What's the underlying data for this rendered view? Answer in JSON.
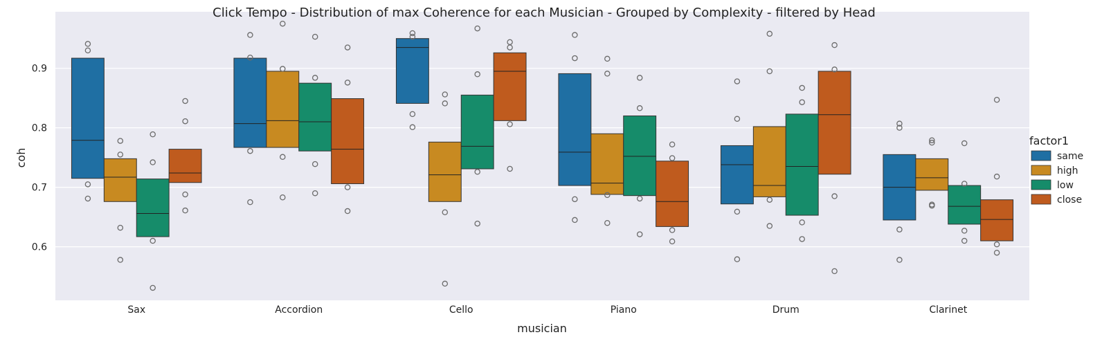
{
  "chart_data": {
    "type": "boxen",
    "title": "Click Tempo - Distribution of max Coherence for each Musician - Grouped by Complexity - filtered by Head",
    "xlabel": "musician",
    "ylabel": "coh",
    "ylim": [
      0.51,
      0.995
    ],
    "yticks": [
      0.6,
      0.7,
      0.8,
      0.9
    ],
    "ytick_labels": [
      "0.6",
      "0.7",
      "0.8",
      "0.9"
    ],
    "grid": true,
    "legend": {
      "title": "factor1",
      "placement": "right"
    },
    "categories": [
      "Sax",
      "Accordion",
      "Cello",
      "Piano",
      "Drum",
      "Clarinet"
    ],
    "series": [
      {
        "name": "same",
        "color": "#1f6fa3",
        "boxes": [
          {
            "q1": 0.715,
            "median": 0.779,
            "q3": 0.917,
            "outliers": [
              0.941,
              0.93,
              0.705,
              0.681
            ]
          },
          {
            "q1": 0.767,
            "median": 0.807,
            "q3": 0.917,
            "outliers": [
              0.956,
              0.918,
              0.761,
              0.675
            ]
          },
          {
            "q1": 0.841,
            "median": 0.935,
            "q3": 0.95,
            "outliers": [
              0.959,
              0.953,
              0.823,
              0.801
            ]
          },
          {
            "q1": 0.703,
            "median": 0.759,
            "q3": 0.891,
            "outliers": [
              0.956,
              0.917,
              0.68,
              0.645
            ]
          },
          {
            "q1": 0.672,
            "median": 0.738,
            "q3": 0.77,
            "outliers": [
              0.878,
              0.815,
              0.659,
              0.579
            ]
          },
          {
            "q1": 0.645,
            "median": 0.7,
            "q3": 0.755,
            "outliers": [
              0.807,
              0.8,
              0.629,
              0.578
            ]
          }
        ]
      },
      {
        "name": "high",
        "color": "#c88a21",
        "boxes": [
          {
            "q1": 0.676,
            "median": 0.717,
            "q3": 0.748,
            "outliers": [
              0.778,
              0.755,
              0.632,
              0.578
            ]
          },
          {
            "q1": 0.767,
            "median": 0.812,
            "q3": 0.895,
            "outliers": [
              0.975,
              0.899,
              0.751,
              0.683
            ]
          },
          {
            "q1": 0.676,
            "median": 0.721,
            "q3": 0.776,
            "outliers": [
              0.856,
              0.841,
              0.658,
              0.538
            ]
          },
          {
            "q1": 0.688,
            "median": 0.707,
            "q3": 0.79,
            "outliers": [
              0.916,
              0.891,
              0.687,
              0.64
            ]
          },
          {
            "q1": 0.684,
            "median": 0.703,
            "q3": 0.802,
            "outliers": [
              0.958,
              0.895,
              0.679,
              0.635
            ]
          },
          {
            "q1": 0.695,
            "median": 0.716,
            "q3": 0.748,
            "outliers": [
              0.779,
              0.775,
              0.671,
              0.669
            ]
          }
        ]
      },
      {
        "name": "low",
        "color": "#168c6a",
        "boxes": [
          {
            "q1": 0.617,
            "median": 0.656,
            "q3": 0.714,
            "outliers": [
              0.789,
              0.742,
              0.61,
              0.531
            ]
          },
          {
            "q1": 0.761,
            "median": 0.81,
            "q3": 0.875,
            "outliers": [
              0.953,
              0.884,
              0.739,
              0.69
            ]
          },
          {
            "q1": 0.731,
            "median": 0.769,
            "q3": 0.855,
            "outliers": [
              0.967,
              0.89,
              0.726,
              0.639
            ]
          },
          {
            "q1": 0.686,
            "median": 0.752,
            "q3": 0.82,
            "outliers": [
              0.884,
              0.833,
              0.681,
              0.621
            ]
          },
          {
            "q1": 0.653,
            "median": 0.735,
            "q3": 0.823,
            "outliers": [
              0.867,
              0.843,
              0.641,
              0.613
            ]
          },
          {
            "q1": 0.638,
            "median": 0.668,
            "q3": 0.703,
            "outliers": [
              0.774,
              0.706,
              0.627,
              0.61
            ]
          }
        ]
      },
      {
        "name": "close",
        "color": "#bf5b1e",
        "boxes": [
          {
            "q1": 0.708,
            "median": 0.724,
            "q3": 0.764,
            "outliers": [
              0.845,
              0.811,
              0.688,
              0.661
            ]
          },
          {
            "q1": 0.706,
            "median": 0.764,
            "q3": 0.849,
            "outliers": [
              0.935,
              0.876,
              0.7,
              0.66
            ]
          },
          {
            "q1": 0.812,
            "median": 0.895,
            "q3": 0.926,
            "outliers": [
              0.944,
              0.935,
              0.806,
              0.731
            ]
          },
          {
            "q1": 0.634,
            "median": 0.676,
            "q3": 0.744,
            "outliers": [
              0.772,
              0.749,
              0.628,
              0.609
            ]
          },
          {
            "q1": 0.722,
            "median": 0.822,
            "q3": 0.895,
            "outliers": [
              0.939,
              0.898,
              0.685,
              0.559
            ]
          },
          {
            "q1": 0.61,
            "median": 0.646,
            "q3": 0.679,
            "outliers": [
              0.847,
              0.718,
              0.604,
              0.59
            ]
          }
        ]
      }
    ]
  }
}
